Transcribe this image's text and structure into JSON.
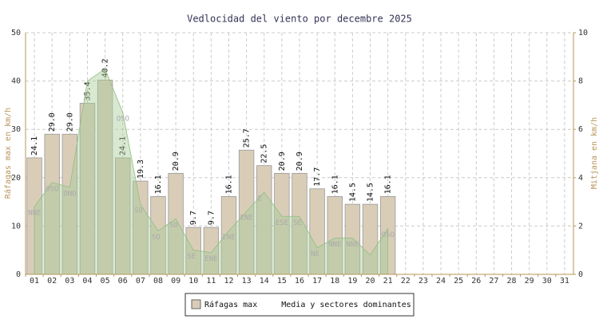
{
  "chart_data": {
    "type": "bar",
    "title": "Vedlocidad del viento por decembre 2025",
    "y_label": "Ráfagas max en km/h",
    "y2_label": "Mitjana en km/h",
    "categories": [
      "01",
      "02",
      "03",
      "04",
      "05",
      "06",
      "07",
      "08",
      "09",
      "10",
      "11",
      "12",
      "13",
      "14",
      "15",
      "16",
      "17",
      "18",
      "19",
      "20",
      "21",
      "22",
      "23",
      "24",
      "25",
      "26",
      "27",
      "28",
      "29",
      "30",
      "31"
    ],
    "series": [
      {
        "name": "Ráfagas max",
        "type": "bar",
        "color": "#d9cdb8",
        "values": [
          24.1,
          29.0,
          29.0,
          35.4,
          40.2,
          24.1,
          19.3,
          16.1,
          20.9,
          9.7,
          9.7,
          16.1,
          25.7,
          22.5,
          20.9,
          20.9,
          17.7,
          16.1,
          14.5,
          14.5,
          16.1,
          null,
          null,
          null,
          null,
          null,
          null,
          null,
          null,
          null,
          null
        ],
        "value_labels": [
          "24.1",
          "29.0",
          "29.0",
          "35.4",
          "40.2",
          "24.1",
          "19.3",
          "16.1",
          "20.9",
          "9.7",
          "9.7",
          "16.1",
          "25.7",
          "22.5",
          "20.9",
          "20.9",
          "17.7",
          "16.1",
          "14.5",
          "14.5",
          "16.1",
          null,
          null,
          null,
          null,
          null,
          null,
          null,
          null,
          null,
          null
        ]
      },
      {
        "name": "Media y sectores dominantes",
        "type": "area",
        "axis": "y2",
        "color": "#a8cc98",
        "values": [
          2.8,
          3.8,
          3.6,
          8.0,
          8.5,
          6.7,
          2.9,
          1.8,
          2.3,
          1.0,
          0.9,
          1.8,
          2.6,
          3.4,
          2.4,
          2.4,
          1.1,
          1.5,
          1.5,
          0.8,
          1.9,
          null,
          null,
          null,
          null,
          null,
          null,
          null,
          null,
          null,
          null
        ],
        "sectors": [
          "NNE",
          "OSO",
          "ONO",
          null,
          null,
          "OSO",
          "SO",
          "SO",
          "SO",
          "SE",
          "ENE",
          "ENE",
          "ENE",
          "E",
          "ESE",
          "SE",
          "NE",
          "NNE",
          "NNE",
          null,
          "OSO",
          null,
          null,
          null,
          null,
          null,
          null,
          null,
          null,
          null,
          null
        ]
      }
    ],
    "ylim": [
      0,
      50
    ],
    "yticks": [
      0,
      10,
      20,
      30,
      40,
      50
    ],
    "y2lim": [
      0,
      10
    ],
    "y2ticks": [
      0,
      2,
      4,
      6,
      8,
      10
    ],
    "grid": true,
    "legend": "bottom"
  }
}
